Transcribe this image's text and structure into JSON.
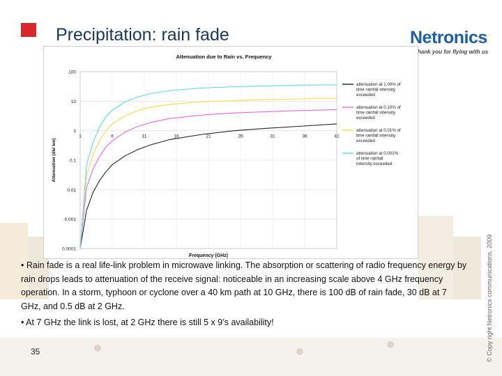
{
  "slide": {
    "title": "Precipitation: rain fade",
    "logo_text": "Netronics",
    "tagline": "Thank you for flying with us",
    "copyright": "© Copy right Netronics communications, 2009",
    "page_number": "35",
    "bullets": [
      "• Rain fade is a real life-link problem in microwave linking. The absorption or scattering of radio frequency energy by rain drops leads to attenuation of the receive signal: noticeable in an increasing scale above 4 GHz frequency operation. In a storm, typhoon or cyclone over a 40 km path at 10 GHz, there is 100 dB of rain fade, 30 dB at 7 GHz, and 0.5 dB at 2 GHz.",
      "• At 7 GHz the link is lost, at 2 GHz there is still 5 x 9’s availability!"
    ],
    "colors": {
      "accent_square": "#d9262a",
      "title": "#17375e",
      "logo": "#1f5fa6"
    }
  },
  "chart_data": {
    "type": "line",
    "title": "Attenuation due to Rain vs. Frequency",
    "xlabel": "Frequency (GHz)",
    "ylabel": "Attenuation (db/ km)",
    "y_scale": "log",
    "ylim": [
      0.0001,
      100
    ],
    "xlim": [
      1,
      41
    ],
    "x_ticks": [
      "1",
      "6",
      "11",
      "16",
      "21",
      "26",
      "31",
      "36",
      "41"
    ],
    "y_ticks": [
      "100",
      "10",
      "1",
      "0.1",
      "0.01",
      "0.001",
      "0.0001"
    ],
    "grid": true,
    "legend_position": "right",
    "x": [
      1,
      2,
      3,
      4,
      5,
      6,
      8,
      10,
      12,
      15,
      20,
      25,
      30,
      35,
      41
    ],
    "series": [
      {
        "name": "attenuation at 1.00% of time rainfall intensity exceeded",
        "color": "#222222",
        "values": [
          0.0001,
          0.002,
          0.008,
          0.02,
          0.04,
          0.07,
          0.14,
          0.23,
          0.33,
          0.5,
          0.75,
          1.0,
          1.2,
          1.4,
          1.7
        ]
      },
      {
        "name": "attenuation at 0.10% of time rainfall intensity exceeded",
        "color": "#ee66dd",
        "values": [
          0.0001,
          0.012,
          0.05,
          0.13,
          0.28,
          0.45,
          0.9,
          1.4,
          1.9,
          2.6,
          3.4,
          4.0,
          4.4,
          4.8,
          5.2
        ]
      },
      {
        "name": "attenuation at 0.01% of time rainfall intensity exceeded",
        "color": "#f0e04a",
        "values": [
          0.0001,
          0.03,
          0.15,
          0.45,
          1.0,
          1.7,
          3.2,
          4.8,
          6.2,
          7.8,
          9.5,
          10.5,
          11.3,
          12.0,
          12.5
        ]
      },
      {
        "name": "attenuation at 0.001% of time rainfall intensity exceeded",
        "color": "#5fd8ee",
        "values": [
          0.0001,
          0.07,
          0.4,
          1.3,
          3.0,
          5.0,
          9.5,
          14,
          18,
          23,
          28,
          31,
          33,
          35,
          36
        ]
      }
    ]
  }
}
